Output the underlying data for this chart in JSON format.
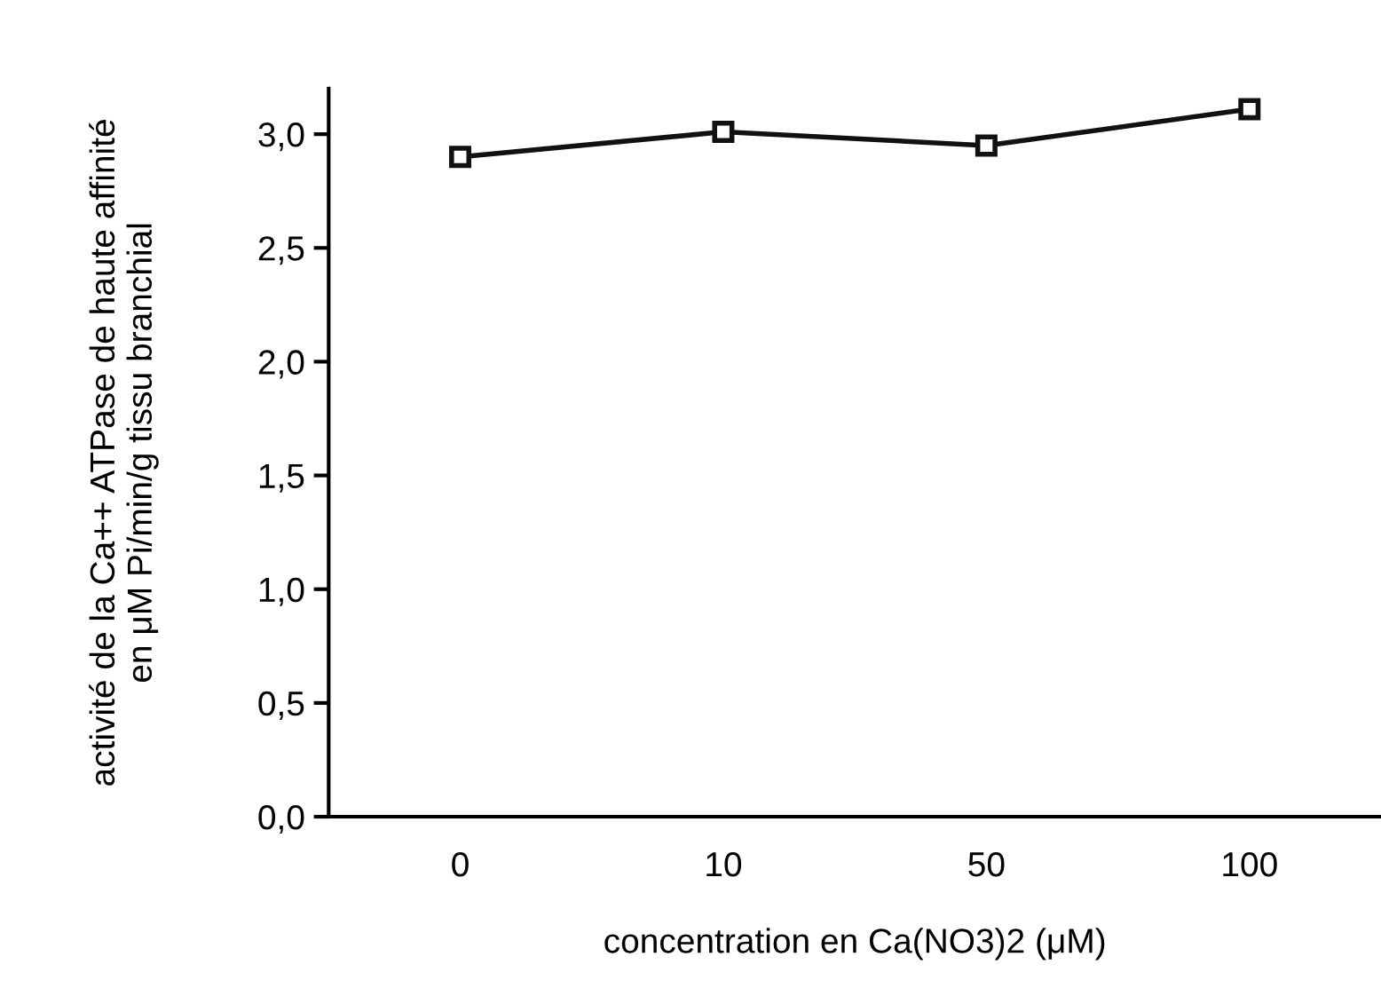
{
  "chart_data": {
    "type": "line",
    "xlabel": "concentration en Ca(NO3)2 (μM)",
    "ylabel": "activité de la Ca++ ATPase de haute affinité\nen μM Pi/min/g tissu branchial",
    "categories": [
      "0",
      "10",
      "50",
      "100"
    ],
    "values": [
      2.9,
      3.01,
      2.95,
      3.11
    ],
    "color": "#111111",
    "marker": "square",
    "line_style": "solid",
    "ylim": [
      0,
      3.2
    ],
    "yticks": [
      {
        "value": 0,
        "label": "0,0"
      },
      {
        "value": 0.5,
        "label": "0,5"
      },
      {
        "value": 1.0,
        "label": "1,0"
      },
      {
        "value": 1.5,
        "label": "1,5"
      },
      {
        "value": 2.0,
        "label": "2,0"
      },
      {
        "value": 2.5,
        "label": "2,5"
      },
      {
        "value": 3.0,
        "label": "3,0"
      }
    ],
    "grid": false
  }
}
